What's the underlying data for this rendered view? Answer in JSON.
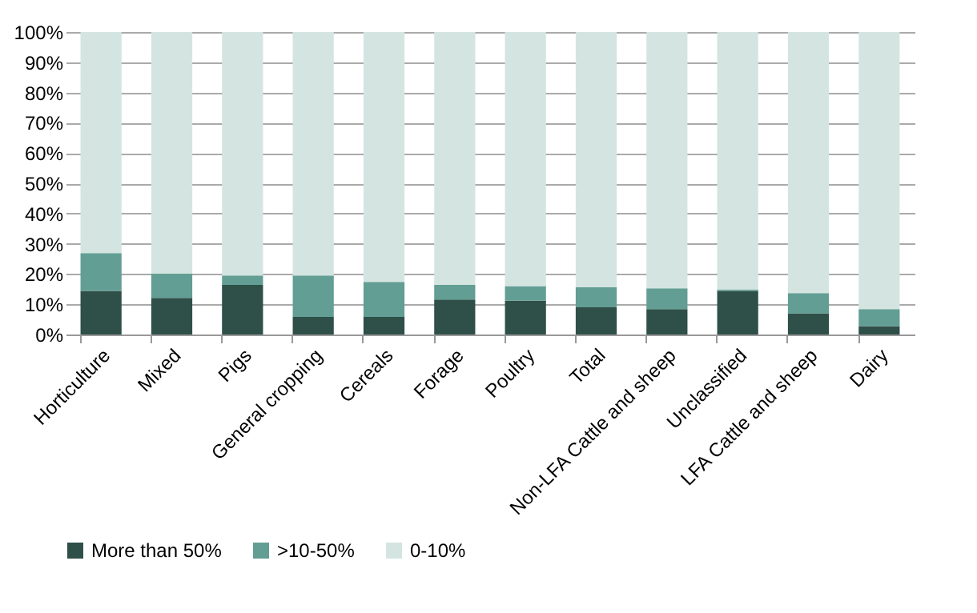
{
  "chart_data": {
    "type": "bar",
    "stacked": true,
    "categories": [
      "Horticulture",
      "Mixed",
      "Pigs",
      "General cropping",
      "Cereals",
      "Forage",
      "Poultry",
      "Total",
      "Non-LFA Cattle and sheep",
      "Unclassified",
      "LFA Cattle and sheep",
      "Dairy"
    ],
    "series": [
      {
        "name": "More than 50%",
        "color": "#2f4f49",
        "values": [
          14.4,
          12.1,
          16.4,
          5.8,
          5.8,
          11.6,
          11.2,
          9.0,
          8.4,
          14.4,
          7.0,
          2.8
        ]
      },
      {
        "name": ">10-50%",
        "color": "#629e93",
        "values": [
          12.5,
          8.1,
          3.1,
          13.7,
          11.6,
          4.8,
          4.8,
          6.6,
          6.9,
          0.4,
          6.7,
          5.6
        ]
      },
      {
        "name": "0-10%",
        "color": "#d4e4e1",
        "values": [
          73.1,
          79.8,
          80.5,
          80.5,
          82.6,
          83.6,
          84.0,
          84.4,
          84.7,
          85.2,
          86.3,
          91.6
        ]
      }
    ],
    "ylim": [
      0,
      100
    ],
    "yticks": [
      {
        "value": 0,
        "label": "0%"
      },
      {
        "value": 10,
        "label": "10%"
      },
      {
        "value": 20,
        "label": "20%"
      },
      {
        "value": 30,
        "label": "30%"
      },
      {
        "value": 40,
        "label": "40%"
      },
      {
        "value": 50,
        "label": "50%"
      },
      {
        "value": 60,
        "label": "60%"
      },
      {
        "value": 70,
        "label": "70%"
      },
      {
        "value": 80,
        "label": "80%"
      },
      {
        "value": 90,
        "label": "90%"
      },
      {
        "value": 100,
        "label": "100%"
      }
    ],
    "grid": "y",
    "legend": "bottom"
  }
}
